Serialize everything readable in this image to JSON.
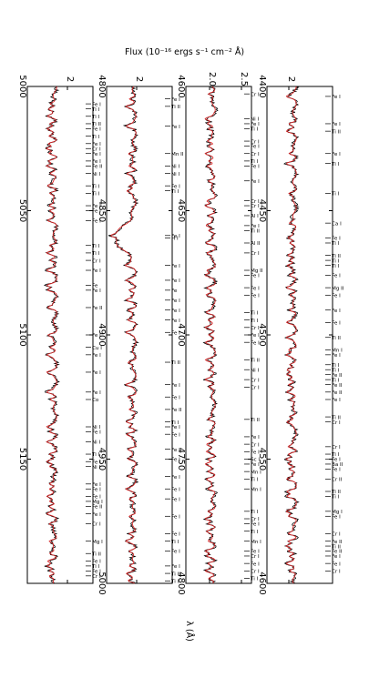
{
  "figure": {
    "flux_label": "Flux (10⁻¹⁶ ergs s⁻¹ cm⁻² Å)",
    "wavelength_label": "λ (Å)",
    "colors": {
      "observed": "#000000",
      "model": "#d62728",
      "frame": "#000000"
    }
  },
  "chart_data": [
    {
      "type": "line",
      "panel": 1,
      "xlim": [
        4400,
        4600
      ],
      "x_ticks": [
        "4400",
        "4450",
        "4500",
        "4550",
        "4600"
      ],
      "y_ticks": [
        "2"
      ],
      "series": [],
      "lines": [
        {
          "w": 4404,
          "label": "Fe I"
        },
        {
          "w": 4415,
          "label": "Fe I"
        },
        {
          "w": 4418,
          "label": "Ti II"
        },
        {
          "w": 4427,
          "label": "Fe I"
        },
        {
          "w": 4431,
          "label": "Ti I"
        },
        {
          "w": 4443,
          "label": "Ti I"
        },
        {
          "w": 4455,
          "label": "Ca I"
        },
        {
          "w": 4461,
          "label": "Fe I"
        },
        {
          "w": 4463,
          "label": "Ti I"
        },
        {
          "w": 4468,
          "label": "Ti II"
        },
        {
          "w": 4470,
          "label": "Ti I"
        },
        {
          "w": 4472,
          "label": "Ti I"
        },
        {
          "w": 4476,
          "label": "Fe I"
        },
        {
          "w": 4481,
          "label": "Mg II"
        },
        {
          "w": 4484,
          "label": "Fe I"
        },
        {
          "w": 4490,
          "label": "Fe I"
        },
        {
          "w": 4495,
          "label": "Fe I"
        },
        {
          "w": 4501,
          "label": "Ti II"
        },
        {
          "w": 4506,
          "label": "Mn I"
        },
        {
          "w": 4508,
          "label": "Fe I"
        },
        {
          "w": 4512,
          "label": "Ti I"
        },
        {
          "w": 4514,
          "label": "Ti I"
        },
        {
          "w": 4516,
          "label": "Fe II"
        },
        {
          "w": 4518,
          "label": "Ti I"
        },
        {
          "w": 4520,
          "label": "Fe II"
        },
        {
          "w": 4523,
          "label": "Fe II"
        },
        {
          "w": 4526,
          "label": "Fe I"
        },
        {
          "w": 4533,
          "label": "Ti II"
        },
        {
          "w": 4535,
          "label": "Cr I"
        },
        {
          "w": 4545,
          "label": "Cr I"
        },
        {
          "w": 4548,
          "label": "Ti I"
        },
        {
          "w": 4550,
          "label": "Fe I"
        },
        {
          "w": 4552,
          "label": "Ba II"
        },
        {
          "w": 4554,
          "label": "Fe I"
        },
        {
          "w": 4558,
          "label": "Cr II"
        },
        {
          "w": 4563,
          "label": "Ti II"
        },
        {
          "w": 4565,
          "label": "Ti I"
        },
        {
          "w": 4571,
          "label": "Mg I"
        },
        {
          "w": 4573,
          "label": "Fe I"
        },
        {
          "w": 4580,
          "label": "Cr I"
        },
        {
          "w": 4583,
          "label": "Fe II"
        },
        {
          "w": 4585,
          "label": "Ti II"
        },
        {
          "w": 4587,
          "label": "Fe II"
        },
        {
          "w": 4589,
          "label": "Fe I"
        },
        {
          "w": 4592,
          "label": "Fe I"
        },
        {
          "w": 4595,
          "label": "Cr I"
        }
      ]
    },
    {
      "type": "line",
      "panel": 2,
      "xlim": [
        4600,
        4800
      ],
      "x_ticks": [
        "4600",
        "4650",
        "4700",
        "4750",
        "4800"
      ],
      "y_ticks": [
        "2.0",
        "2.5"
      ],
      "series": [],
      "lines": [
        {
          "w": 4603,
          "label": "Cr I"
        },
        {
          "w": 4613,
          "label": "Ni I"
        },
        {
          "w": 4615,
          "label": "Fe I"
        },
        {
          "w": 4617,
          "label": "Ti I"
        },
        {
          "w": 4622,
          "label": "Cr I"
        },
        {
          "w": 4624,
          "label": "Fe I"
        },
        {
          "w": 4627,
          "label": "Cr I"
        },
        {
          "w": 4630,
          "label": "Ti I"
        },
        {
          "w": 4632,
          "label": "Fe I"
        },
        {
          "w": 4638,
          "label": "Fe I"
        },
        {
          "w": 4646,
          "label": "Cr I"
        },
        {
          "w": 4648,
          "label": "Cr I"
        },
        {
          "w": 4652,
          "label": "Al I"
        },
        {
          "w": 4656,
          "label": "Fe I"
        },
        {
          "w": 4658,
          "label": "Ti II"
        },
        {
          "w": 4663,
          "label": "Al II"
        },
        {
          "w": 4667,
          "label": "Cr I"
        },
        {
          "w": 4674,
          "label": "Mg II"
        },
        {
          "w": 4676,
          "label": "Fe I"
        },
        {
          "w": 4681,
          "label": "Fe I"
        },
        {
          "w": 4684,
          "label": "Fe I"
        },
        {
          "w": 4691,
          "label": "Ti I"
        },
        {
          "w": 4694,
          "label": "Ti I"
        },
        {
          "w": 4697,
          "label": "Cr I"
        },
        {
          "w": 4700,
          "label": "Fe I"
        },
        {
          "w": 4703,
          "label": "Fe I"
        },
        {
          "w": 4710,
          "label": "Ti II"
        },
        {
          "w": 4714,
          "label": "Ni I"
        },
        {
          "w": 4718,
          "label": "Cr I"
        },
        {
          "w": 4721,
          "label": "Cr I"
        },
        {
          "w": 4734,
          "label": "Ti II"
        },
        {
          "w": 4741,
          "label": "Fe I"
        },
        {
          "w": 4744,
          "label": "Cr I"
        },
        {
          "w": 4747,
          "label": "Fe I"
        },
        {
          "w": 4750,
          "label": "Sc I"
        },
        {
          "w": 4752,
          "label": "Fe I"
        },
        {
          "w": 4755,
          "label": "Mn I"
        },
        {
          "w": 4758,
          "label": "Ti I"
        },
        {
          "w": 4762,
          "label": "Mn I"
        },
        {
          "w": 4771,
          "label": "Ti I"
        },
        {
          "w": 4774,
          "label": "Cr I"
        },
        {
          "w": 4776,
          "label": "Fe I"
        },
        {
          "w": 4779,
          "label": "Ti I"
        },
        {
          "w": 4783,
          "label": "Mn I"
        },
        {
          "w": 4787,
          "label": "Fe I"
        },
        {
          "w": 4789,
          "label": "Cr I"
        },
        {
          "w": 4792,
          "label": "Fe I"
        },
        {
          "w": 4795,
          "label": "Cr I"
        },
        {
          "w": 4798,
          "label": "Ti I"
        }
      ]
    },
    {
      "type": "line",
      "panel": 3,
      "xlim": [
        4800,
        5000
      ],
      "x_ticks": [
        "4800",
        "4850",
        "4900",
        "4950",
        "5000"
      ],
      "y_ticks": [
        "2"
      ],
      "series": [],
      "lines": [
        {
          "w": 4805,
          "label": "Fe I"
        },
        {
          "w": 4808,
          "label": "Ti II"
        },
        {
          "w": 4816,
          "label": "Fe I"
        },
        {
          "w": 4827,
          "label": "Mn II"
        },
        {
          "w": 4832,
          "label": "Ni I"
        },
        {
          "w": 4835,
          "label": "Ni I"
        },
        {
          "w": 4840,
          "label": "Fe I"
        },
        {
          "w": 4842,
          "label": "Ti I"
        },
        {
          "w": 4860,
          "label": "Fe I"
        },
        {
          "w": 4861,
          "label": "H I"
        },
        {
          "w": 4872,
          "label": "Fe I"
        },
        {
          "w": 4878,
          "label": "Fe I"
        },
        {
          "w": 4882,
          "label": "Fe"
        },
        {
          "w": 4886,
          "label": "Fe I"
        },
        {
          "w": 4890,
          "label": "Fe I"
        },
        {
          "w": 4894,
          "label": "Fe I"
        },
        {
          "w": 4899,
          "label": "Fe I"
        },
        {
          "w": 4911,
          "label": "Ti II"
        },
        {
          "w": 4920,
          "label": "Fe I"
        },
        {
          "w": 4925,
          "label": "Fe I"
        },
        {
          "w": 4930,
          "label": "Fe II"
        },
        {
          "w": 4935,
          "label": "Ti I"
        },
        {
          "w": 4937,
          "label": "Fe I"
        },
        {
          "w": 4940,
          "label": "Fe I"
        },
        {
          "w": 4946,
          "label": "Fe I"
        },
        {
          "w": 4950,
          "label": "Fe I"
        },
        {
          "w": 4957,
          "label": "Fe I"
        },
        {
          "w": 4962,
          "label": "Fe I"
        },
        {
          "w": 4966,
          "label": "Fe I"
        },
        {
          "w": 4973,
          "label": "Fe I"
        },
        {
          "w": 4980,
          "label": "Fe I"
        },
        {
          "w": 4983,
          "label": "Ti I"
        },
        {
          "w": 4987,
          "label": "Fe I"
        },
        {
          "w": 4993,
          "label": "Fe I"
        },
        {
          "w": 4996,
          "label": "Ti II"
        },
        {
          "w": 4999,
          "label": "Ti I"
        }
      ]
    },
    {
      "type": "line",
      "panel": 4,
      "xlim": [
        5000,
        5200
      ],
      "x_ticks": [
        "5000",
        "5050",
        "5100",
        "5150"
      ],
      "y_ticks": [
        "2"
      ],
      "series": [],
      "lines": [
        {
          "w": 5007,
          "label": "Fe I"
        },
        {
          "w": 5009,
          "label": "Ti I"
        },
        {
          "w": 5012,
          "label": "Ti I"
        },
        {
          "w": 5015,
          "label": "Ti II"
        },
        {
          "w": 5017,
          "label": "Fe I"
        },
        {
          "w": 5020,
          "label": "Ti I"
        },
        {
          "w": 5023,
          "label": "Fe I"
        },
        {
          "w": 5025,
          "label": "Cr I"
        },
        {
          "w": 5027,
          "label": "Fe I"
        },
        {
          "w": 5030,
          "label": "Fe I"
        },
        {
          "w": 5032,
          "label": "Fe II"
        },
        {
          "w": 5035,
          "label": "Ni I"
        },
        {
          "w": 5040,
          "label": "Ti I"
        },
        {
          "w": 5043,
          "label": "Ti I"
        },
        {
          "w": 5048,
          "label": "Fe I"
        },
        {
          "w": 5050,
          "label": "Fe I"
        },
        {
          "w": 5054,
          "label": "Fe I"
        },
        {
          "w": 5064,
          "label": "Ti I"
        },
        {
          "w": 5067,
          "label": "Ti I"
        },
        {
          "w": 5070,
          "label": "Cr I"
        },
        {
          "w": 5074,
          "label": "Fe I"
        },
        {
          "w": 5080,
          "label": "Fe"
        },
        {
          "w": 5082,
          "label": "Fe I"
        },
        {
          "w": 5089,
          "label": "Fe II"
        },
        {
          "w": 5100,
          "label": "Fe I"
        },
        {
          "w": 5105,
          "label": "Cu I"
        },
        {
          "w": 5108,
          "label": "Fe I"
        },
        {
          "w": 5115,
          "label": "Fe I"
        },
        {
          "w": 5123,
          "label": "Fe I"
        },
        {
          "w": 5126,
          "label": "Co"
        },
        {
          "w": 5137,
          "label": "Ni I"
        },
        {
          "w": 5139,
          "label": "Fe I"
        },
        {
          "w": 5143,
          "label": "Ni I"
        },
        {
          "w": 5148,
          "label": "Ti I"
        },
        {
          "w": 5151,
          "label": "Fe I"
        },
        {
          "w": 5153,
          "label": "Ni I"
        },
        {
          "w": 5160,
          "label": "Fe I"
        },
        {
          "w": 5162,
          "label": "Fe I"
        },
        {
          "w": 5165,
          "label": "Fe I"
        },
        {
          "w": 5167,
          "label": "Mg I"
        },
        {
          "w": 5169,
          "label": "Fe II"
        },
        {
          "w": 5172,
          "label": "Fe I"
        },
        {
          "w": 5176,
          "label": "Cr I"
        },
        {
          "w": 5183,
          "label": "Mg I"
        },
        {
          "w": 5188,
          "label": "Ti II"
        },
        {
          "w": 5191,
          "label": "Fe I"
        },
        {
          "w": 5193,
          "label": "Ti I"
        },
        {
          "w": 5195,
          "label": "Fe I"
        },
        {
          "w": 5197,
          "label": "Cr I"
        }
      ]
    }
  ]
}
